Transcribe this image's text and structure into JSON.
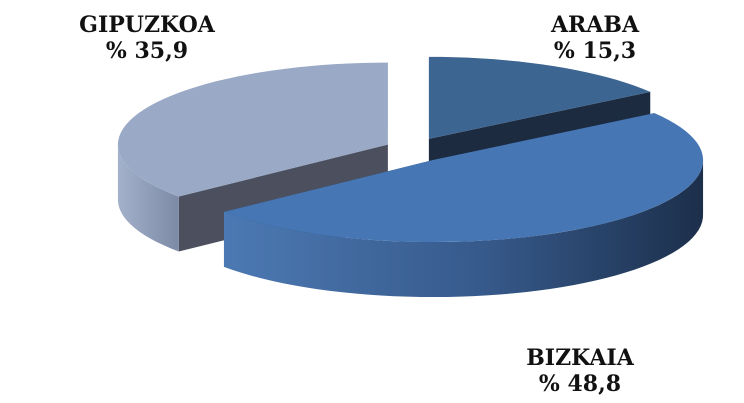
{
  "chart_data": {
    "type": "pie",
    "style": "3d-exploded",
    "title": "",
    "slices": [
      {
        "label": "ARABA",
        "value": 15.3,
        "value_text": "% 15,3",
        "color": "#3d6591",
        "side_color": "#1c2b40"
      },
      {
        "label": "BIZKAIA",
        "value": 48.8,
        "value_text": "% 48,8",
        "color": "#4676b4",
        "side_color": "#2b4d78"
      },
      {
        "label": "GIPUZKOA",
        "value": 35.9,
        "value_text": "% 35,9",
        "color": "#9aa9c6",
        "side_color": "#4b4f5e"
      }
    ]
  }
}
